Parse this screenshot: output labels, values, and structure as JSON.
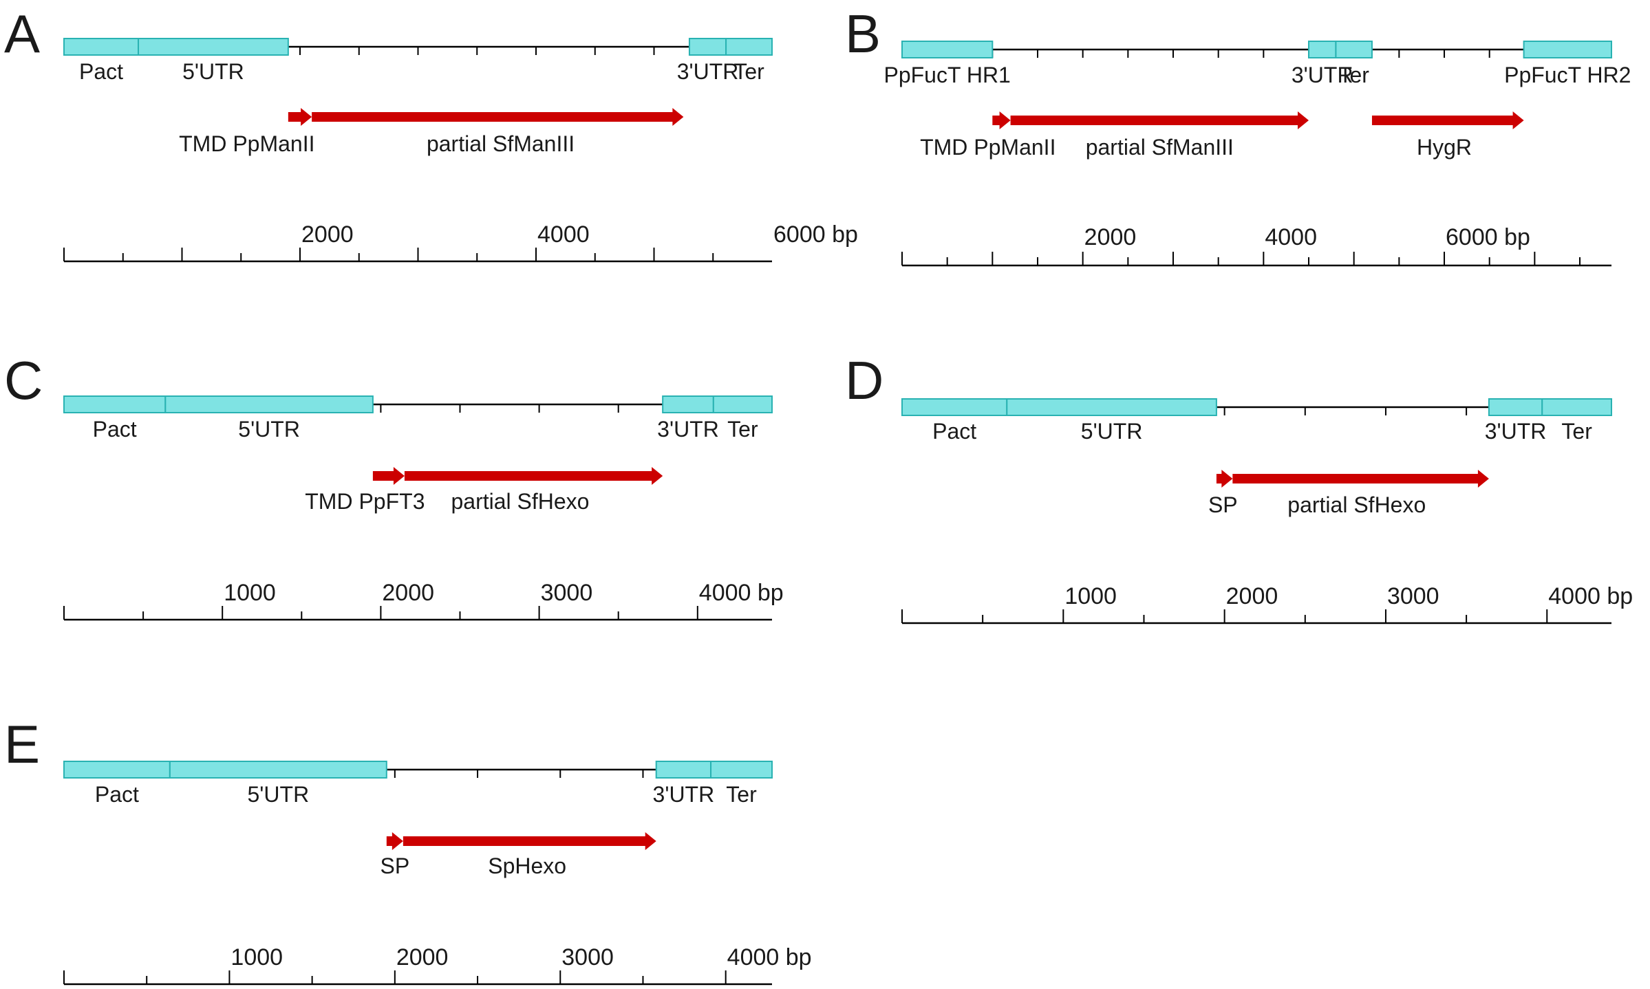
{
  "figure": "Construct maps A–E",
  "colors": {
    "box_fill": "#7fe3e3",
    "box_stroke": "#29b2b2",
    "arrow": "#cc0000",
    "line": "#000000"
  },
  "panels": [
    {
      "id": "A",
      "letter": "A",
      "length_bp": 6000,
      "minor_tick_bp": 500,
      "tick_start_bp": 0,
      "segments": [
        {
          "name": "Pact",
          "label": "Pact",
          "start_bp": 0,
          "end_bp": 630
        },
        {
          "name": "5UTR",
          "label": "5'UTR",
          "start_bp": 630,
          "end_bp": 1900
        },
        {
          "name": "3UTR",
          "label": "3'UTR",
          "start_bp": 5300,
          "end_bp": 5610
        },
        {
          "name": "Ter",
          "label": "Ter",
          "start_bp": 5610,
          "end_bp": 6000
        }
      ],
      "arrows": [
        {
          "name": "tmd",
          "start_bp": 1900,
          "end_bp": 2100
        },
        {
          "name": "partial-sfmaniii",
          "start_bp": 2100,
          "end_bp": 5250
        }
      ],
      "arrow_labels": [
        {
          "name": "tmd-ppmanii",
          "text": "TMD PpManII",
          "at_bp": 1550
        },
        {
          "name": "partial-sfmaniii",
          "text": "partial SfManIII",
          "at_bp": 3700
        }
      ],
      "ticks_labeled": [
        {
          "bp": 2000,
          "label": "2000"
        },
        {
          "bp": 4000,
          "label": "4000"
        },
        {
          "bp": 6000,
          "label": "6000 bp"
        }
      ]
    },
    {
      "id": "B",
      "letter": "B",
      "length_bp": 7850,
      "minor_tick_bp": 500,
      "tick_start_bp": 0,
      "segments": [
        {
          "name": "ppfuct-hr1",
          "label": "PpFucT HR1",
          "start_bp": 0,
          "end_bp": 1000
        },
        {
          "name": "3UTR",
          "label": "3'UTR",
          "start_bp": 4500,
          "end_bp": 4800
        },
        {
          "name": "Ter",
          "label": "Ter",
          "start_bp": 4800,
          "end_bp": 5200
        },
        {
          "name": "ppfuct-hr2",
          "label": "PpFucT HR2",
          "start_bp": 6880,
          "end_bp": 7850
        }
      ],
      "arrows": [
        {
          "name": "tmd",
          "start_bp": 1000,
          "end_bp": 1200
        },
        {
          "name": "partial-sfmaniii",
          "start_bp": 1200,
          "end_bp": 4500
        },
        {
          "name": "hygr",
          "start_bp": 5200,
          "end_bp": 6880
        }
      ],
      "arrow_labels": [
        {
          "name": "tmd-ppmanii",
          "text": "TMD PpManII",
          "at_bp": 950
        },
        {
          "name": "partial-sfmaniii",
          "text": "partial SfManIII",
          "at_bp": 2850
        },
        {
          "name": "hygr",
          "text": "HygR",
          "at_bp": 6000
        }
      ],
      "ticks_labeled": [
        {
          "bp": 2000,
          "label": "2000"
        },
        {
          "bp": 4000,
          "label": "4000"
        },
        {
          "bp": 6000,
          "label": "6000 bp"
        }
      ]
    },
    {
      "id": "C",
      "letter": "C",
      "length_bp": 4470,
      "minor_tick_bp": 500,
      "tick_start_bp": 0,
      "segments": [
        {
          "name": "Pact",
          "label": "Pact",
          "start_bp": 0,
          "end_bp": 640
        },
        {
          "name": "5UTR",
          "label": "5'UTR",
          "start_bp": 640,
          "end_bp": 1950
        },
        {
          "name": "3UTR",
          "label": "3'UTR",
          "start_bp": 3780,
          "end_bp": 4100
        },
        {
          "name": "Ter",
          "label": "Ter",
          "start_bp": 4100,
          "end_bp": 4470
        }
      ],
      "arrows": [
        {
          "name": "tmd",
          "start_bp": 1950,
          "end_bp": 2150
        },
        {
          "name": "partial-sfhexo",
          "start_bp": 2150,
          "end_bp": 3780
        }
      ],
      "arrow_labels": [
        {
          "name": "tmd-ppft3",
          "text": "TMD PpFT3",
          "at_bp": 1900
        },
        {
          "name": "partial-sfhexo",
          "text": "partial SfHexo",
          "at_bp": 2880
        }
      ],
      "ticks_labeled": [
        {
          "bp": 1000,
          "label": "1000"
        },
        {
          "bp": 2000,
          "label": "2000"
        },
        {
          "bp": 3000,
          "label": "3000"
        },
        {
          "bp": 4000,
          "label": "4000 bp"
        }
      ]
    },
    {
      "id": "D",
      "letter": "D",
      "length_bp": 4400,
      "minor_tick_bp": 500,
      "tick_start_bp": 0,
      "segments": [
        {
          "name": "Pact",
          "label": "Pact",
          "start_bp": 0,
          "end_bp": 650
        },
        {
          "name": "5UTR",
          "label": "5'UTR",
          "start_bp": 650,
          "end_bp": 1950
        },
        {
          "name": "3UTR",
          "label": "3'UTR",
          "start_bp": 3640,
          "end_bp": 3970
        },
        {
          "name": "Ter",
          "label": "Ter",
          "start_bp": 3970,
          "end_bp": 4400
        }
      ],
      "arrows": [
        {
          "name": "sp",
          "start_bp": 1950,
          "end_bp": 2050
        },
        {
          "name": "partial-sfhexo",
          "start_bp": 2050,
          "end_bp": 3640
        }
      ],
      "arrow_labels": [
        {
          "name": "sp",
          "text": "SP",
          "at_bp": 1990
        },
        {
          "name": "partial-sfhexo",
          "text": "partial SfHexo",
          "at_bp": 2820
        }
      ],
      "ticks_labeled": [
        {
          "bp": 1000,
          "label": "1000"
        },
        {
          "bp": 2000,
          "label": "2000"
        },
        {
          "bp": 3000,
          "label": "3000"
        },
        {
          "bp": 4000,
          "label": "4000 bp"
        }
      ]
    },
    {
      "id": "E",
      "letter": "E",
      "length_bp": 4280,
      "minor_tick_bp": 500,
      "tick_start_bp": 0,
      "segments": [
        {
          "name": "Pact",
          "label": "Pact",
          "start_bp": 0,
          "end_bp": 640
        },
        {
          "name": "5UTR",
          "label": "5'UTR",
          "start_bp": 640,
          "end_bp": 1950
        },
        {
          "name": "3UTR",
          "label": "3'UTR",
          "start_bp": 3580,
          "end_bp": 3910
        },
        {
          "name": "Ter",
          "label": "Ter",
          "start_bp": 3910,
          "end_bp": 4280
        }
      ],
      "arrows": [
        {
          "name": "sp",
          "start_bp": 1950,
          "end_bp": 2050
        },
        {
          "name": "sphexo",
          "start_bp": 2050,
          "end_bp": 3580
        }
      ],
      "arrow_labels": [
        {
          "name": "sp",
          "text": "SP",
          "at_bp": 2000
        },
        {
          "name": "sphexo",
          "text": "SpHexo",
          "at_bp": 2800
        }
      ],
      "ticks_labeled": [
        {
          "bp": 1000,
          "label": "1000"
        },
        {
          "bp": 2000,
          "label": "2000"
        },
        {
          "bp": 3000,
          "label": "3000"
        },
        {
          "bp": 4000,
          "label": "4000 bp"
        }
      ]
    }
  ]
}
